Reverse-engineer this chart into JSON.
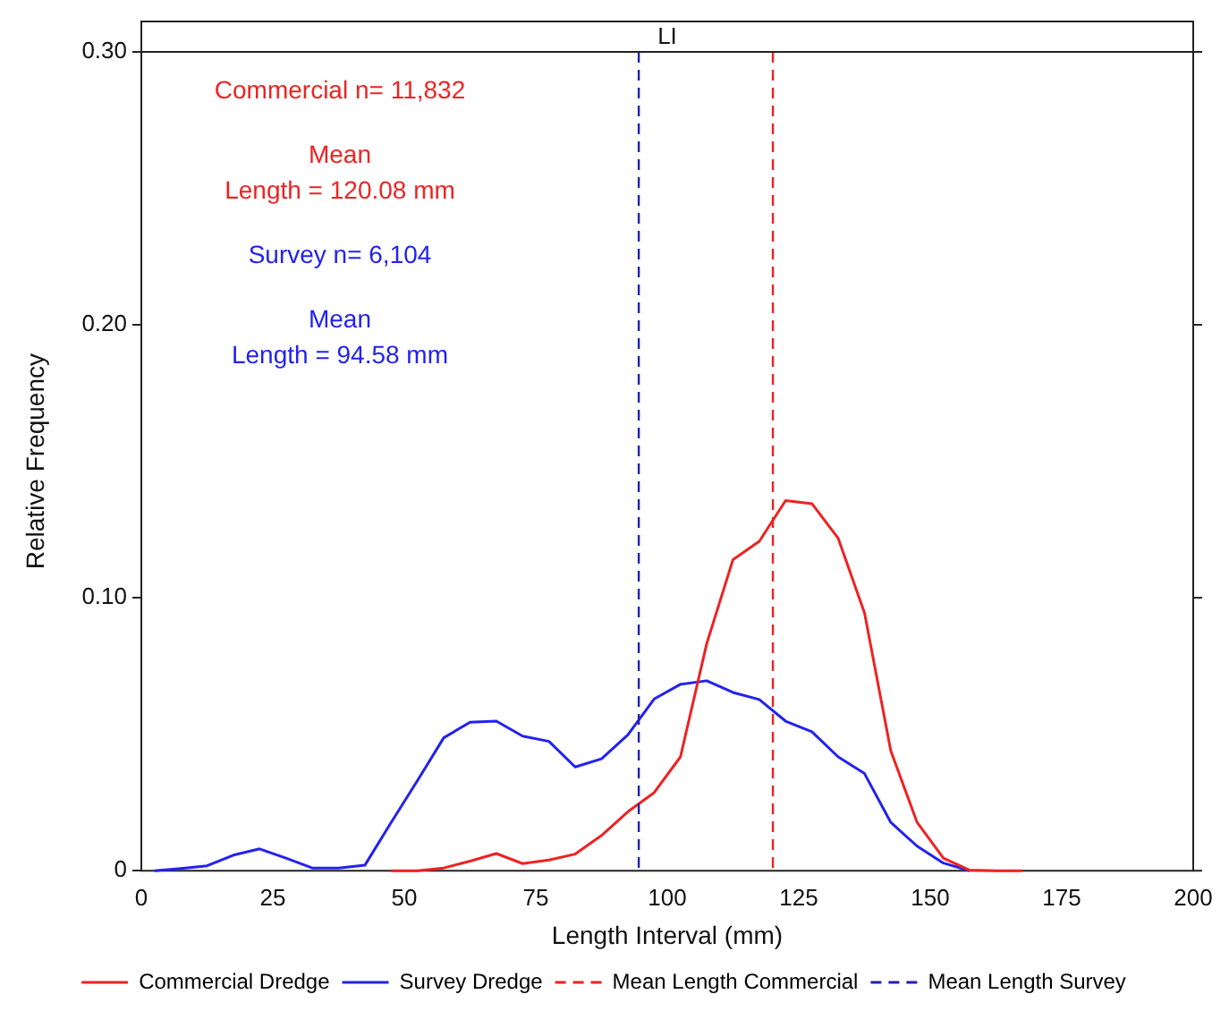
{
  "chart_data": {
    "type": "line",
    "title": "LI",
    "xlabel": "Length Interval (mm)",
    "ylabel": "Relative Frequency",
    "x": [
      2.5,
      7.5,
      12.5,
      17.5,
      22.5,
      27.5,
      32.5,
      37.5,
      42.5,
      47.5,
      52.5,
      57.5,
      62.5,
      67.5,
      72.5,
      77.5,
      82.5,
      87.5,
      92.5,
      97.5,
      102.5,
      107.5,
      112.5,
      117.5,
      122.5,
      127.5,
      132.5,
      137.5,
      142.5,
      147.5,
      152.5,
      157.5,
      162.5,
      167.5
    ],
    "series": [
      {
        "name": "Commercial Dredge",
        "color": "#ee2222",
        "values": [
          null,
          null,
          null,
          null,
          null,
          null,
          null,
          null,
          null,
          0,
          0,
          0.001,
          0.0035,
          0.0063,
          0.0026,
          0.0039,
          0.0061,
          0.0129,
          0.0216,
          0.0286,
          0.0417,
          0.0832,
          0.114,
          0.1207,
          0.1356,
          0.1345,
          0.1218,
          0.0945,
          0.0439,
          0.0177,
          0.0046,
          0.0002,
          0,
          0
        ]
      },
      {
        "name": "Survey Dredge",
        "color": "#2222ee",
        "values": [
          0,
          0.0008,
          0.0018,
          0.0057,
          0.008,
          0.0046,
          0.001,
          0.001,
          0.002,
          0.0177,
          0.033,
          0.0487,
          0.0544,
          0.0548,
          0.0493,
          0.0474,
          0.038,
          0.041,
          0.0498,
          0.0629,
          0.0683,
          0.0696,
          0.0653,
          0.0627,
          0.0548,
          0.0509,
          0.0417,
          0.0356,
          0.0177,
          0.009,
          0.0028,
          0,
          null,
          null
        ]
      }
    ],
    "ref_lines": [
      {
        "axis": "x",
        "value": 120.08,
        "label": "Mean Length Commercial",
        "color": "#ee2222",
        "line_style": "dashed"
      },
      {
        "axis": "x",
        "value": 94.58,
        "label": "Mean Length Survey",
        "color": "#2222aa",
        "line_style": "dashed"
      }
    ],
    "annotations": [
      "Commercial n= 11,832",
      "Mean\nLength = 120.08 mm",
      "Survey n= 6,104",
      "Mean\nLength = 94.58 mm"
    ],
    "xlim": [
      0,
      200
    ],
    "xticks": [
      0,
      25,
      50,
      75,
      100,
      125,
      150,
      175,
      200
    ],
    "ylim": [
      0,
      0.3
    ],
    "yticks": [
      0,
      {
        "value": 0.1,
        "label": "0.10"
      },
      {
        "value": 0.2,
        "label": "0.20"
      },
      {
        "value": 0.3,
        "label": "0.30"
      }
    ],
    "grid": false,
    "legend": "bottom",
    "marker": "none",
    "line_style": "solid"
  }
}
